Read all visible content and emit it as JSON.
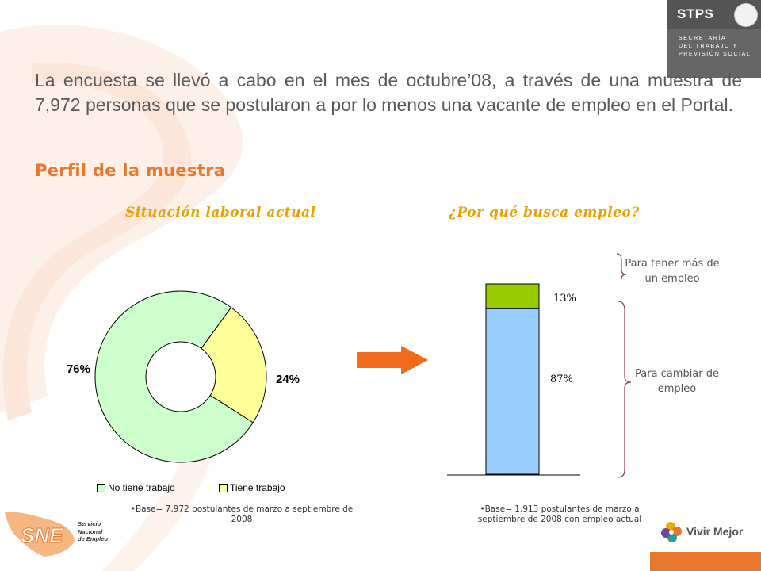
{
  "header": {
    "logo_text": "STPS",
    "logo_sub": [
      "SECRETARÍA",
      "DEL TRABAJO Y",
      "PREVISIÓN SOCIAL"
    ],
    "seal_icon": "mexican-coat-of-arms-icon"
  },
  "intro_text": "La encuesta se llevó a cabo en el mes de octubre’08, a través de una muestra de 7,972 personas que se postularon a por lo menos una vacante de empleo en el Portal.",
  "section_title": "Perfil de la muestra",
  "arrow_icon": "right-arrow-icon",
  "chart_data": [
    {
      "type": "pie",
      "style": "donut",
      "title": "Situación laboral actual",
      "categories": [
        "No tiene trabajo",
        "Tiene trabajo"
      ],
      "values": [
        76,
        24
      ],
      "labels": [
        "76%",
        "24%"
      ],
      "colors": [
        "#ccffcc",
        "#ffff99"
      ],
      "legend": "bottom",
      "base_note": "•Base= 7,972  postulantes de marzo a septiembre de 2008"
    },
    {
      "type": "bar",
      "stacked": true,
      "title": "¿Por qué busca empleo?",
      "categories": [
        ""
      ],
      "series": [
        {
          "values": [
            87
          ],
          "label": "87%",
          "color": "#99ccff",
          "annotation": "Para cambiar de empleo"
        },
        {
          "values": [
            13
          ],
          "label": "13%",
          "color": "#99cc00",
          "annotation": "Para tener más de un empleo"
        }
      ],
      "ylim": [
        0,
        100
      ],
      "base_note": "•Base= 1,913  postulantes de marzo a septiembre de 2008 con empleo actual"
    }
  ],
  "footer": {
    "sne_logo": "SNE",
    "sne_sub": [
      "Servicio",
      "Nacional",
      "de Empleo"
    ],
    "vivir_logo_text": "Vivir Mejor",
    "vivir_icon": "flower-icon",
    "colors": {
      "accent": "#e8782e",
      "title": "#e8a100",
      "text": "#595959"
    }
  }
}
